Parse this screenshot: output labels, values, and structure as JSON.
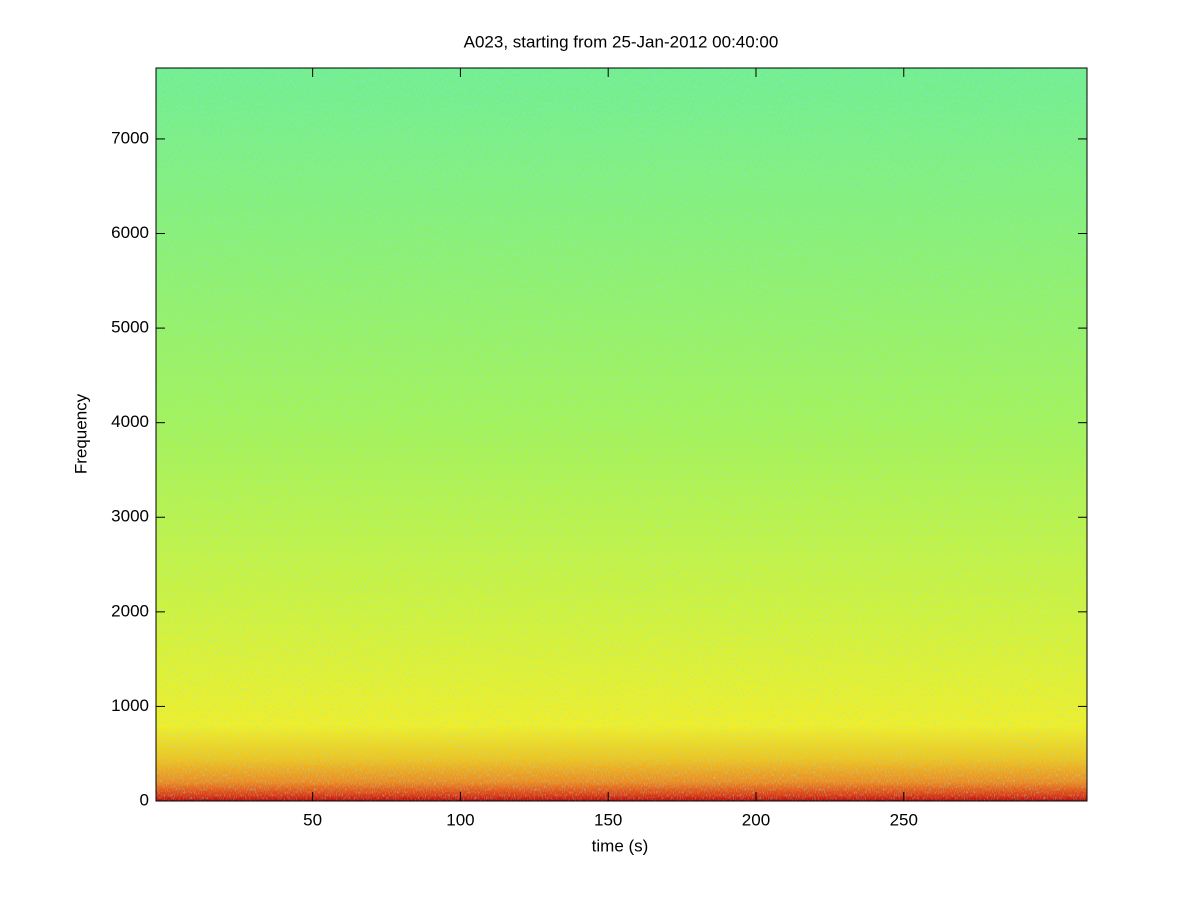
{
  "chart_data": {
    "type": "spectrogram",
    "title": "A023, starting from 25-Jan-2012 00:40:00",
    "xlabel": "time (s)",
    "ylabel": "Frequency",
    "xlim": [
      -3,
      312
    ],
    "xticks": [
      50,
      100,
      150,
      200,
      250
    ],
    "ylim": [
      0,
      7750
    ],
    "yticks": [
      0,
      1000,
      2000,
      3000,
      4000,
      5000,
      6000,
      7000
    ],
    "color_stops": [
      {
        "y": 0,
        "color": "#b80808"
      },
      {
        "y": 60,
        "color": "#e03a10"
      },
      {
        "y": 200,
        "color": "#f08a1c"
      },
      {
        "y": 450,
        "color": "#f2c41a"
      },
      {
        "y": 800,
        "color": "#f4ee22"
      },
      {
        "y": 2000,
        "color": "#d4f236"
      },
      {
        "y": 4000,
        "color": "#a6f254"
      },
      {
        "y": 7750,
        "color": "#74ee8c"
      }
    ]
  }
}
